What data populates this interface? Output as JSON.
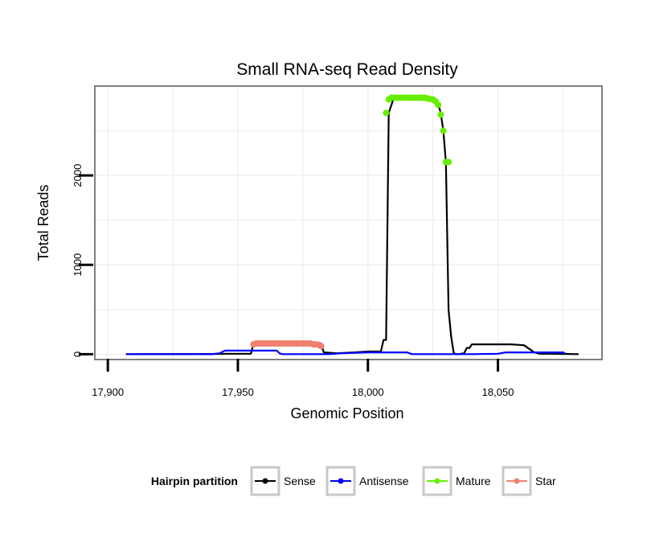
{
  "chart_data": {
    "type": "line",
    "title": "Small RNA-seq Read Density",
    "xlabel": "Genomic Position",
    "ylabel": "Total Reads",
    "xlim": [
      17895,
      18090
    ],
    "ylim": [
      -60,
      3000
    ],
    "x_ticks": [
      17900,
      17950,
      18000,
      18050
    ],
    "x_tick_labels": [
      "17,900",
      "17,950",
      "18,000",
      "18,050"
    ],
    "y_ticks": [
      0,
      1000,
      2000
    ],
    "y_tick_labels": [
      "0",
      "1000",
      "2000"
    ],
    "grid": true,
    "legend": {
      "title": "Hairpin partition",
      "placement": "bottom",
      "entries": [
        "Sense",
        "Antisense",
        "Mature",
        "Star"
      ]
    },
    "series": [
      {
        "name": "Sense",
        "color": "#000000",
        "style": "line",
        "x": [
          17907,
          17940,
          17945,
          17955,
          17956,
          17982,
          17983,
          17988,
          17995,
          18000,
          18005,
          18006,
          18007,
          18008,
          18010,
          18020,
          18025,
          18027,
          18028,
          18029,
          18030,
          18031,
          18032,
          18033,
          18034,
          18035,
          18037,
          18038,
          18039,
          18040,
          18045,
          18055,
          18060,
          18062,
          18064,
          18066,
          18070,
          18075,
          18081
        ],
        "y": [
          0,
          2,
          5,
          5,
          120,
          120,
          20,
          10,
          20,
          30,
          30,
          160,
          160,
          2700,
          2870,
          2870,
          2860,
          2800,
          2700,
          2500,
          2150,
          500,
          200,
          10,
          0,
          0,
          10,
          70,
          70,
          110,
          110,
          110,
          100,
          60,
          20,
          5,
          5,
          3,
          0
        ]
      },
      {
        "name": "Antisense",
        "color": "#0000ff",
        "style": "line",
        "x": [
          17907,
          17940,
          17943,
          17945,
          17965,
          17966,
          17967,
          17985,
          17990,
          18000,
          18015,
          18017,
          18025,
          18040,
          18050,
          18053,
          18055,
          18075,
          18076
        ],
        "y": [
          0,
          0,
          10,
          40,
          40,
          10,
          0,
          0,
          10,
          20,
          20,
          0,
          0,
          0,
          5,
          20,
          20,
          20,
          5
        ]
      },
      {
        "name": "Mature",
        "color": "#66ee00",
        "style": "points",
        "x": [
          18007,
          18008,
          18009,
          18010,
          18011,
          18012,
          18013,
          18014,
          18015,
          18016,
          18017,
          18018,
          18019,
          18020,
          18021,
          18022,
          18023,
          18024,
          18025,
          18026,
          18027,
          18028,
          18029,
          18030,
          18031
        ],
        "y": [
          2700,
          2850,
          2870,
          2870,
          2870,
          2870,
          2870,
          2870,
          2870,
          2870,
          2870,
          2870,
          2870,
          2870,
          2870,
          2870,
          2860,
          2855,
          2850,
          2830,
          2790,
          2680,
          2500,
          2150,
          2150
        ]
      },
      {
        "name": "Star",
        "color": "#f08070",
        "style": "points",
        "x": [
          17956,
          17957,
          17958,
          17959,
          17960,
          17961,
          17962,
          17963,
          17964,
          17965,
          17966,
          17967,
          17968,
          17969,
          17970,
          17971,
          17972,
          17973,
          17974,
          17975,
          17976,
          17977,
          17978,
          17979,
          17980,
          17981,
          17982
        ],
        "y": [
          110,
          120,
          120,
          120,
          120,
          120,
          120,
          120,
          120,
          120,
          120,
          120,
          120,
          120,
          120,
          120,
          120,
          120,
          120,
          120,
          120,
          120,
          120,
          110,
          110,
          105,
          90
        ]
      }
    ]
  }
}
